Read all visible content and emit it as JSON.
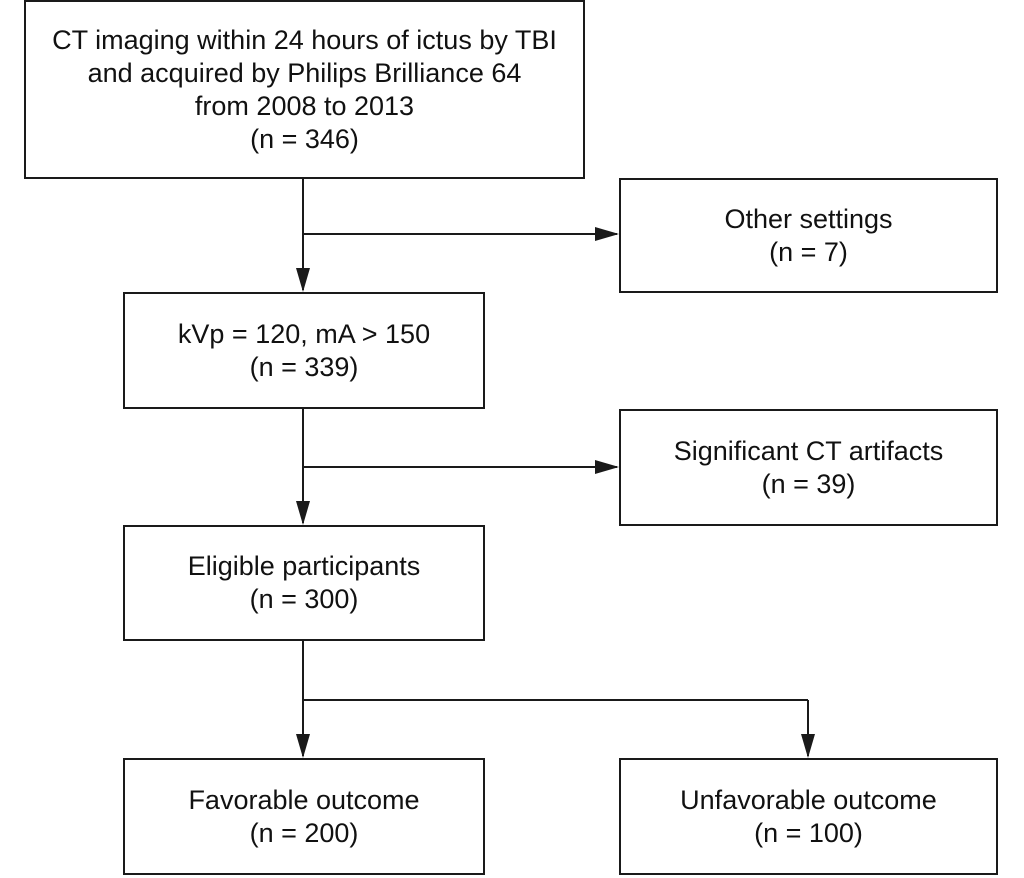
{
  "boxes": {
    "start": {
      "line1": "CT imaging within 24 hours of ictus by TBI",
      "line2": "and acquired by Philips Brilliance 64",
      "line3": "from 2008 to 2013",
      "count": "(n = 346)"
    },
    "other_settings": {
      "label": "Other settings",
      "count": "(n = 7)"
    },
    "kvp": {
      "label": "kVp = 120, mA > 150",
      "count": "(n = 339)"
    },
    "artifacts": {
      "label": "Significant CT artifacts",
      "count": "(n = 39)"
    },
    "eligible": {
      "label": "Eligible participants",
      "count": "(n = 300)"
    },
    "favorable": {
      "label": "Favorable outcome",
      "count": "(n = 200)"
    },
    "unfavorable": {
      "label": "Unfavorable outcome",
      "count": "(n = 100)"
    }
  },
  "colors": {
    "stroke": "#1a1a1a",
    "background": "#ffffff"
  }
}
